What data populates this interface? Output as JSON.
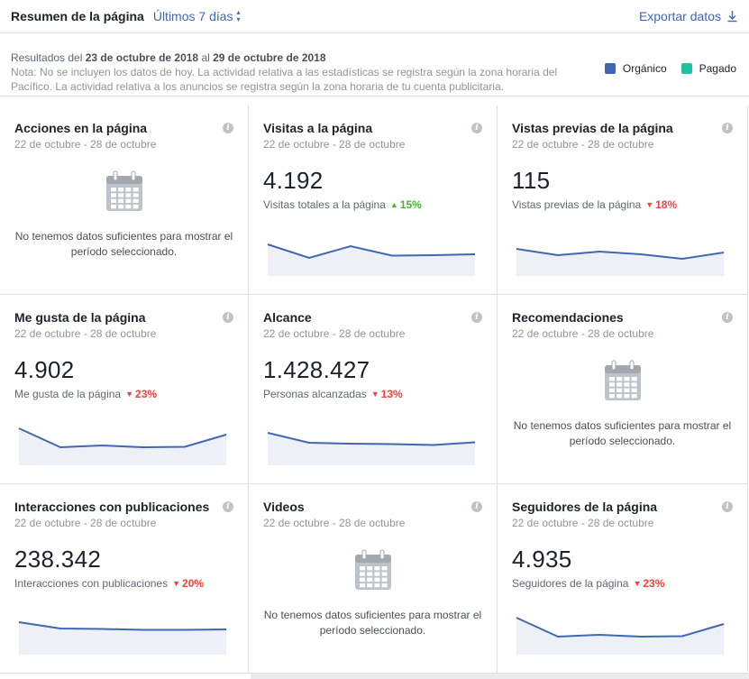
{
  "header": {
    "title": "Resumen de la página",
    "range": "Últimos 7 días",
    "export": "Exportar datos"
  },
  "info": {
    "results_prefix": "Resultados del ",
    "date_from": "23 de octubre de 2018",
    "results_mid": " al ",
    "date_to": "29 de octubre de 2018",
    "note": "Nota: No se incluyen los datos de hoy. La actividad relativa a las estadísticas se registra según la zona horaria del Pacífico. La actividad relativa a los anuncios se registra según la zona horaria de tu cuenta publicitaria."
  },
  "legend": [
    {
      "label": "Orgánico",
      "color": "#4267b2"
    },
    {
      "label": "Pagado",
      "color": "#23c1a4"
    }
  ],
  "colors": {
    "line": "#4267b2",
    "fill": "#edf0f7",
    "up": "#42b72a",
    "down": "#fa3e3e"
  },
  "cards": [
    {
      "title": "Acciones en la página",
      "date": "22 de octubre - 28 de octubre",
      "nodata": "No tenemos datos suficientes para mostrar el período seleccionado."
    },
    {
      "title": "Visitas a la página",
      "date": "22 de octubre - 28 de octubre",
      "value": "4.192",
      "sub": "Visitas totales a la página",
      "delta": "15%",
      "dir": "up",
      "trend": [
        70,
        40,
        66,
        45,
        46,
        48
      ]
    },
    {
      "title": "Vistas previas de la página",
      "date": "22 de octubre - 28 de octubre",
      "value": "115",
      "sub": "Vistas previas de la página",
      "delta": "18%",
      "dir": "down",
      "trend": [
        60,
        46,
        54,
        48,
        38,
        52
      ]
    },
    {
      "title": "Me gusta de la página",
      "date": "22 de octubre - 28 de octubre",
      "value": "4.902",
      "sub": "Me gusta de la página",
      "delta": "23%",
      "dir": "down",
      "trend": [
        82,
        40,
        44,
        40,
        41,
        68
      ]
    },
    {
      "title": "Alcance",
      "date": "22 de octubre - 28 de octubre",
      "value": "1.428.427",
      "sub": "Personas alcanzadas",
      "delta": "13%",
      "dir": "down",
      "trend": [
        72,
        50,
        48,
        47,
        45,
        51
      ]
    },
    {
      "title": "Recomendaciones",
      "date": "22 de octubre - 28 de octubre",
      "nodata": "No tenemos datos suficientes para mostrar el período seleccionado."
    },
    {
      "title": "Interacciones con publicaciones",
      "date": "22 de octubre - 28 de octubre",
      "value": "238.342",
      "sub": "Interacciones con publicaciones",
      "delta": "20%",
      "dir": "down",
      "trend": [
        72,
        58,
        57,
        55,
        55,
        56
      ]
    },
    {
      "title": "Videos",
      "date": "22 de octubre - 28 de octubre",
      "nodata": "No tenemos datos suficientes para mostrar el período seleccionado."
    },
    {
      "title": "Seguidores de la página",
      "date": "22 de octubre - 28 de octubre",
      "value": "4.935",
      "sub": "Seguidores de la página",
      "delta": "23%",
      "dir": "down",
      "trend": [
        82,
        40,
        44,
        40,
        41,
        68
      ]
    }
  ]
}
